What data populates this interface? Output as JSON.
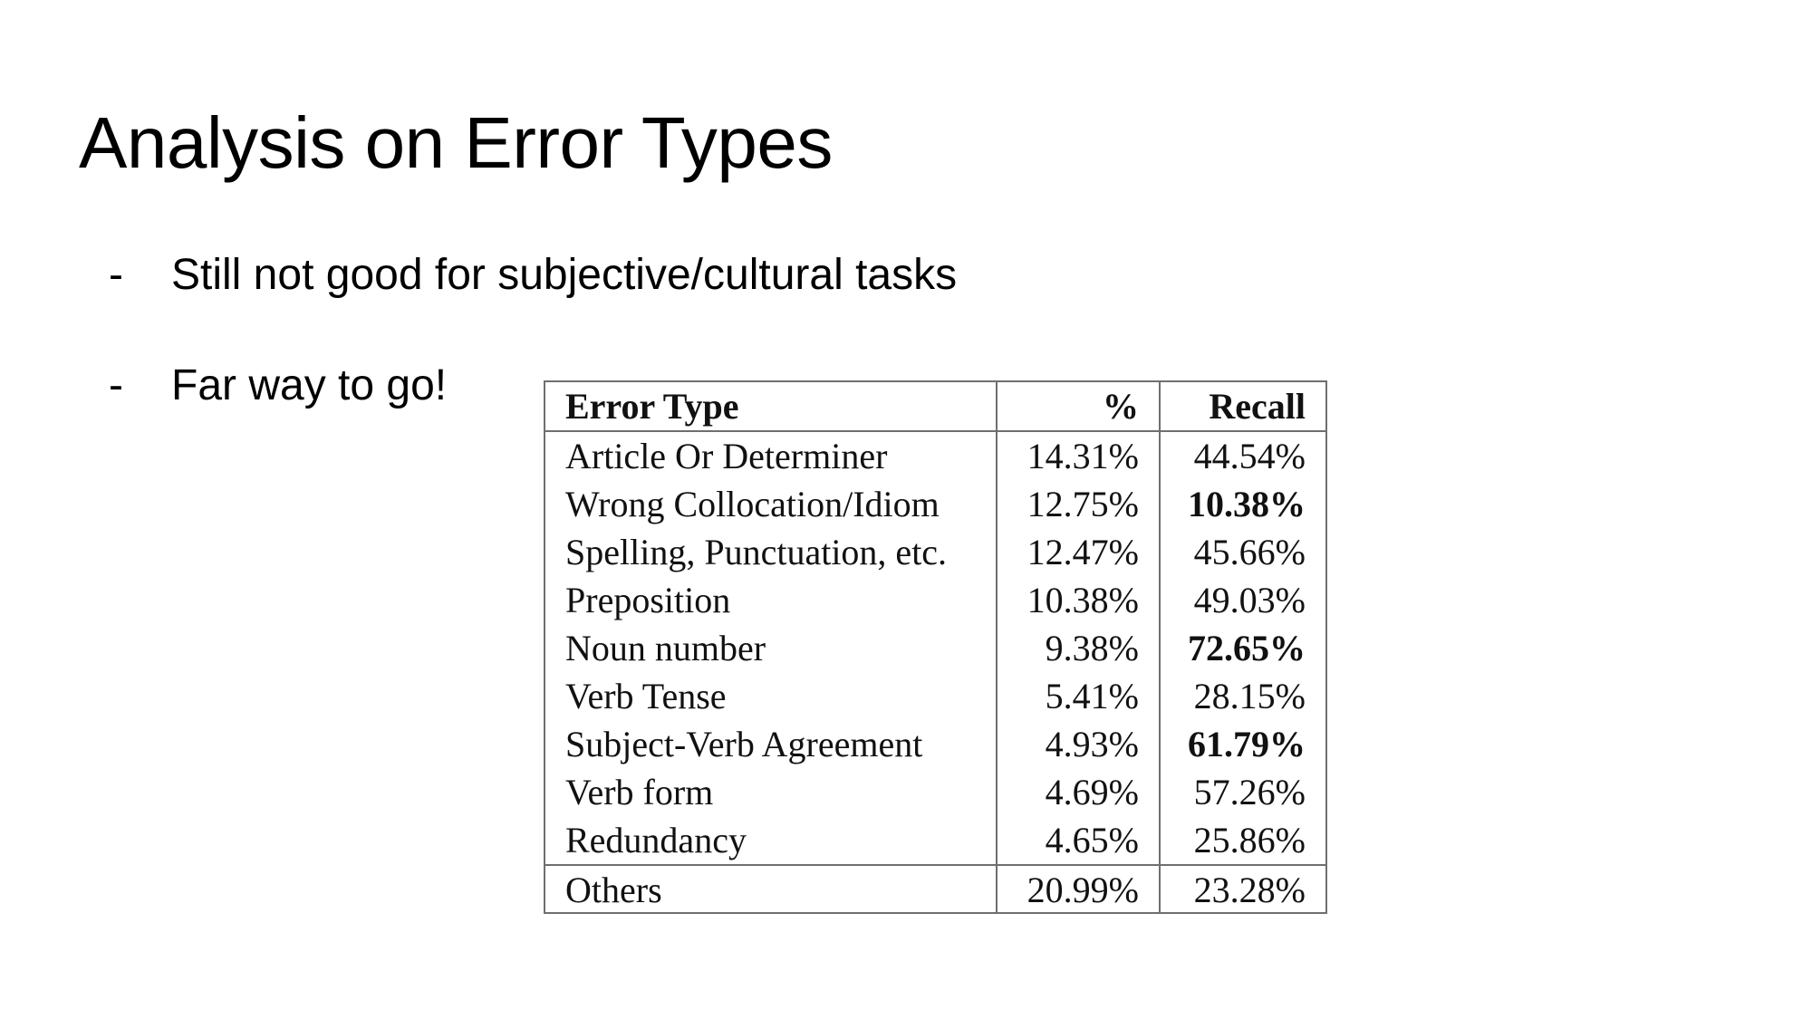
{
  "slide": {
    "title": "Analysis on Error Types",
    "bullets": [
      {
        "marker": "-",
        "text": "Still not good for subjective/cultural tasks"
      },
      {
        "marker": "-",
        "text": "Far way to go!"
      }
    ]
  },
  "table": {
    "headers": {
      "type": "Error Type",
      "pct": "%",
      "recall": "Recall"
    },
    "rows": [
      {
        "type": "Article Or Determiner",
        "pct": "14.31%",
        "recall": "44.54%",
        "recall_bold": false
      },
      {
        "type": "Wrong Collocation/Idiom",
        "pct": "12.75%",
        "recall": "10.38%",
        "recall_bold": true
      },
      {
        "type": "Spelling, Punctuation, etc.",
        "pct": "12.47%",
        "recall": "45.66%",
        "recall_bold": false
      },
      {
        "type": "Preposition",
        "pct": "10.38%",
        "recall": "49.03%",
        "recall_bold": false
      },
      {
        "type": "Noun number",
        "pct": "9.38%",
        "recall": "72.65%",
        "recall_bold": true
      },
      {
        "type": "Verb Tense",
        "pct": "5.41%",
        "recall": "28.15%",
        "recall_bold": false
      },
      {
        "type": "Subject-Verb Agreement",
        "pct": "4.93%",
        "recall": "61.79%",
        "recall_bold": true
      },
      {
        "type": "Verb form",
        "pct": "4.69%",
        "recall": "57.26%",
        "recall_bold": false
      },
      {
        "type": "Redundancy",
        "pct": "4.65%",
        "recall": "25.86%",
        "recall_bold": false
      }
    ],
    "footer": {
      "type": "Others",
      "pct": "20.99%",
      "recall": "23.28%"
    }
  }
}
